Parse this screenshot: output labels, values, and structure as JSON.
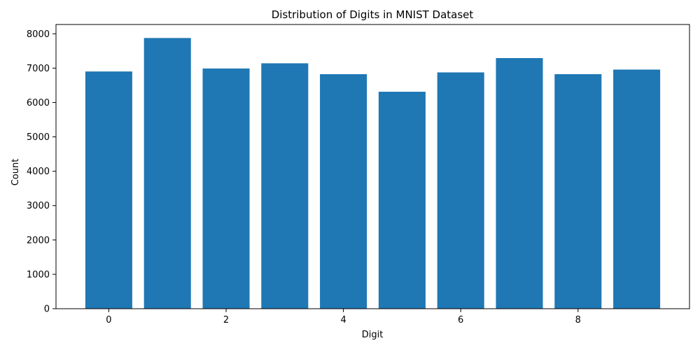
{
  "chart_data": {
    "type": "bar",
    "title": "Distribution of Digits in MNIST Dataset",
    "xlabel": "Digit",
    "ylabel": "Count",
    "categories": [
      0,
      1,
      2,
      3,
      4,
      5,
      6,
      7,
      8,
      9
    ],
    "values": [
      6903,
      7877,
      6990,
      7141,
      6824,
      6313,
      6876,
      7293,
      6825,
      6958
    ],
    "x_ticks": [
      0,
      2,
      4,
      6,
      8
    ],
    "y_ticks": [
      0,
      1000,
      2000,
      3000,
      4000,
      5000,
      6000,
      7000,
      8000
    ],
    "xlim": [
      -0.9,
      9.9
    ],
    "ylim": [
      0,
      8270
    ],
    "bar_color": "#1f77b4",
    "grid": false,
    "legend": "none"
  }
}
